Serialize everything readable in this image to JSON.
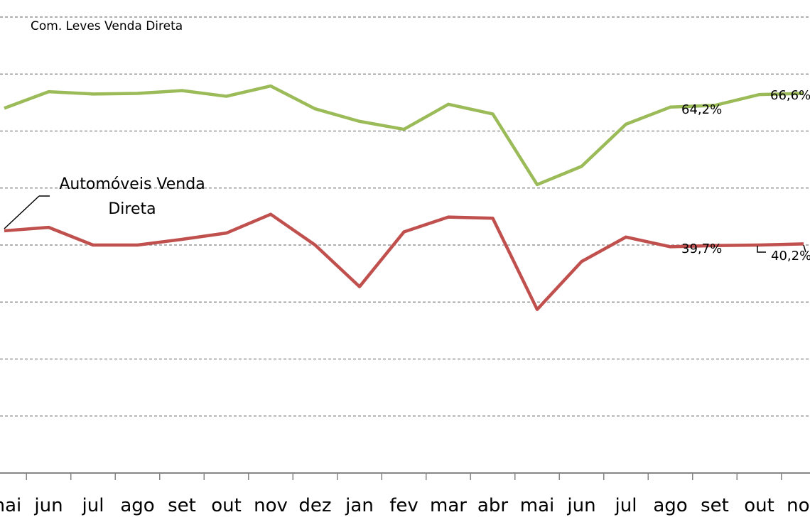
{
  "chart_data": {
    "type": "line",
    "title": "",
    "xlabel": "",
    "ylabel": "",
    "categories": [
      "mai",
      "jun",
      "jul",
      "ago",
      "set",
      "out",
      "nov",
      "dez",
      "jan",
      "fev",
      "mar",
      "abr",
      "mai",
      "jun",
      "jul",
      "ago",
      "set",
      "out",
      "nov"
    ],
    "ylim": [
      0,
      80
    ],
    "grid": true,
    "line_colors": [
      "#9bbb59",
      "#c0504d"
    ],
    "series": [
      {
        "name": "Com. Leves Venda Direta",
        "values": [
          64.0,
          66.9,
          66.5,
          66.6,
          67.1,
          66.1,
          67.9,
          63.9,
          61.7,
          60.3,
          64.7,
          63.0,
          50.6,
          53.8,
          61.2,
          64.2,
          64.5,
          66.4,
          66.6
        ],
        "labels": {
          "15": "64,2%",
          "18": "66,6%"
        }
      },
      {
        "name": "Automóveis Venda Direta",
        "values": [
          42.5,
          43.1,
          40.0,
          40.0,
          41.0,
          42.1,
          45.4,
          40.0,
          32.7,
          42.3,
          44.9,
          44.7,
          28.7,
          37.1,
          41.4,
          39.7,
          39.9,
          40.0,
          40.2
        ],
        "labels": {
          "15": "39,7%",
          "18": "40,2%"
        }
      }
    ]
  }
}
